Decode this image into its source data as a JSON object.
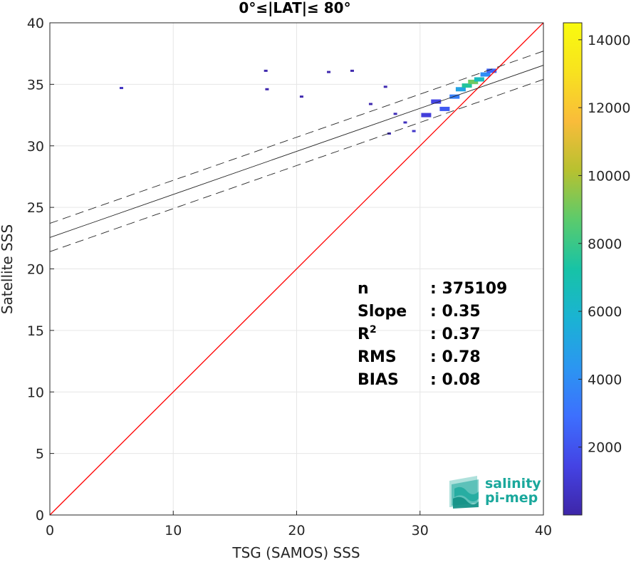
{
  "chart_data": {
    "type": "scatter",
    "title": "0°≤|LAT|≤ 80°",
    "xlabel": "TSG (SAMOS) SSS",
    "ylabel": "Satellite SSS",
    "xlim": [
      0,
      40
    ],
    "ylim": [
      0,
      40
    ],
    "xticks": [
      "0",
      "10",
      "20",
      "30",
      "40"
    ],
    "yticks": [
      "0",
      "5",
      "10",
      "15",
      "20",
      "25",
      "30",
      "35",
      "40"
    ],
    "grid": true,
    "stats": [
      {
        "label": "n",
        "value": ": 375109"
      },
      {
        "label": "Slope",
        "value": ": 0.35"
      },
      {
        "label": "R",
        "sup": "2",
        "value": ": 0.37"
      },
      {
        "label": "RMS",
        "value": ": 0.78"
      },
      {
        "label": "BIAS",
        "value": ": 0.08"
      }
    ],
    "identity_line": {
      "color": "#ff0000",
      "from": [
        0,
        0
      ],
      "to": [
        40,
        40
      ]
    },
    "regression": {
      "intercept": 22.55,
      "slope": 0.35,
      "lower_intercept": 21.4,
      "upper_intercept": 23.7
    },
    "colorbar": {
      "min": 0,
      "max": 14500,
      "ticks": [
        "2000",
        "4000",
        "6000",
        "8000",
        "10000",
        "12000",
        "14000"
      ],
      "tick_values": [
        2000,
        4000,
        6000,
        8000,
        10000,
        12000,
        14000
      ],
      "colormap": [
        "#3e26a8",
        "#4443e4",
        "#3d6ffe",
        "#2b96f1",
        "#1ab3d3",
        "#17c3a6",
        "#5bcb6c",
        "#b7c130",
        "#f9bc3a",
        "#f8e21f",
        "#f9fb0e"
      ]
    },
    "density_cells": [
      {
        "x": 5.8,
        "y": 34.7,
        "count": 600
      },
      {
        "x": 17.5,
        "y": 36.1,
        "count": 150
      },
      {
        "x": 17.6,
        "y": 34.6,
        "count": 150
      },
      {
        "x": 20.4,
        "y": 34.0,
        "count": 150
      },
      {
        "x": 22.6,
        "y": 36.0,
        "count": 150
      },
      {
        "x": 24.5,
        "y": 36.1,
        "count": 150
      },
      {
        "x": 26.0,
        "y": 33.4,
        "count": 200
      },
      {
        "x": 27.2,
        "y": 34.8,
        "count": 200
      },
      {
        "x": 27.5,
        "y": 31.0,
        "count": 400
      },
      {
        "x": 28.0,
        "y": 32.6,
        "count": 400
      },
      {
        "x": 28.8,
        "y": 31.9,
        "count": 500
      },
      {
        "x": 29.5,
        "y": 31.2,
        "count": 800
      },
      {
        "x": 30.5,
        "y": 32.5,
        "count": 1200
      },
      {
        "x": 31.3,
        "y": 33.6,
        "count": 1500
      },
      {
        "x": 32.0,
        "y": 33.0,
        "count": 2200
      },
      {
        "x": 32.8,
        "y": 34.0,
        "count": 3500
      },
      {
        "x": 33.3,
        "y": 34.6,
        "count": 5000
      },
      {
        "x": 33.8,
        "y": 34.9,
        "count": 7500
      },
      {
        "x": 34.3,
        "y": 35.2,
        "count": 9000
      },
      {
        "x": 34.8,
        "y": 35.4,
        "count": 6500
      },
      {
        "x": 35.3,
        "y": 35.8,
        "count": 4000
      },
      {
        "x": 35.8,
        "y": 36.1,
        "count": 2500
      }
    ]
  },
  "logo": {
    "line1": "salinity",
    "line2": "pi-mep"
  }
}
